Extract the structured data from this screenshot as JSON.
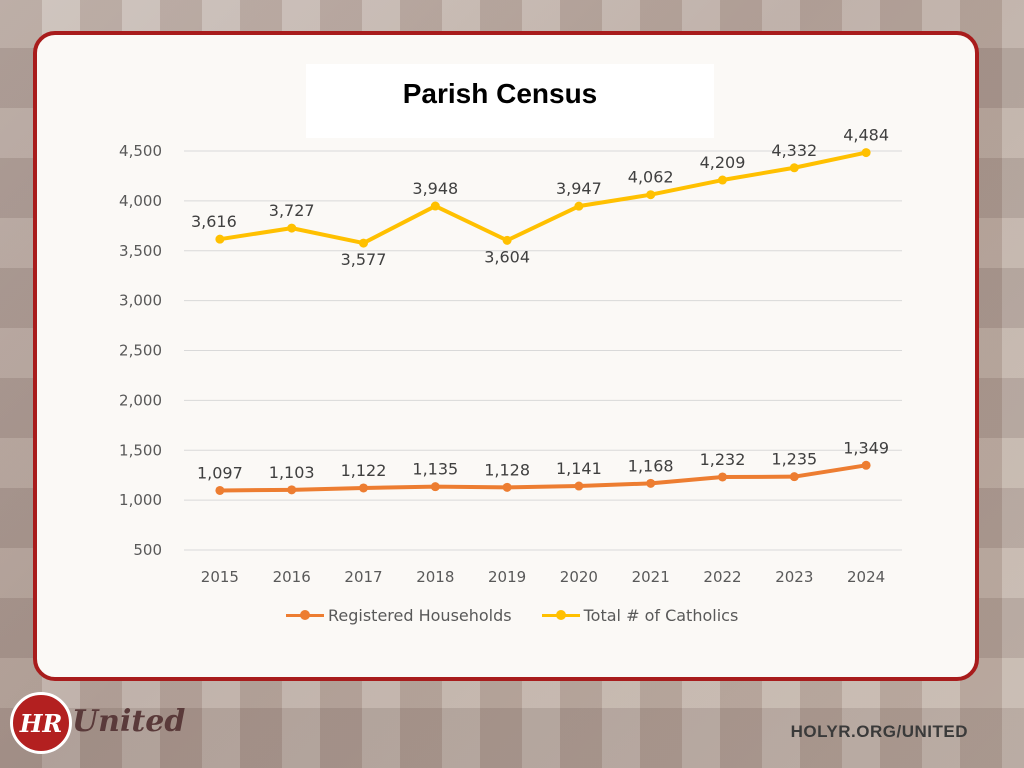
{
  "title": "Parish Census",
  "footer": {
    "url": "HOLYR.ORG/UNITED",
    "logo_text": "United",
    "logo_monogram": "HR"
  },
  "colors": {
    "households": "#ed7d31",
    "catholics": "#ffc000",
    "frame": "#a81c1c"
  },
  "chart_data": {
    "type": "line",
    "title": "Parish Census",
    "x": [
      "2015",
      "2016",
      "2017",
      "2018",
      "2019",
      "2020",
      "2021",
      "2022",
      "2023",
      "2024"
    ],
    "ylim": [
      500,
      4500
    ],
    "yticks": [
      "500",
      "1,000",
      "1,500",
      "2,000",
      "2,500",
      "3,000",
      "3,500",
      "4,000",
      "4,500"
    ],
    "grid": true,
    "legend": "bottom",
    "series": [
      {
        "name": "Registered Households",
        "color": "#ed7d31",
        "values": [
          1097,
          1103,
          1122,
          1135,
          1128,
          1141,
          1168,
          1232,
          1235,
          1349
        ],
        "labels": [
          "1,097",
          "1,103",
          "1,122",
          "1,135",
          "1,128",
          "1,141",
          "1,168",
          "1,232",
          "1,235",
          "1,349"
        ]
      },
      {
        "name": "Total # of Catholics",
        "color": "#ffc000",
        "values": [
          3616,
          3727,
          3577,
          3948,
          3604,
          3947,
          4062,
          4209,
          4332,
          4484
        ],
        "labels": [
          "3,616",
          "3,727",
          "3,577",
          "3,948",
          "3,604",
          "3,947",
          "4,062",
          "4,209",
          "4,332",
          "4,484"
        ]
      }
    ]
  }
}
